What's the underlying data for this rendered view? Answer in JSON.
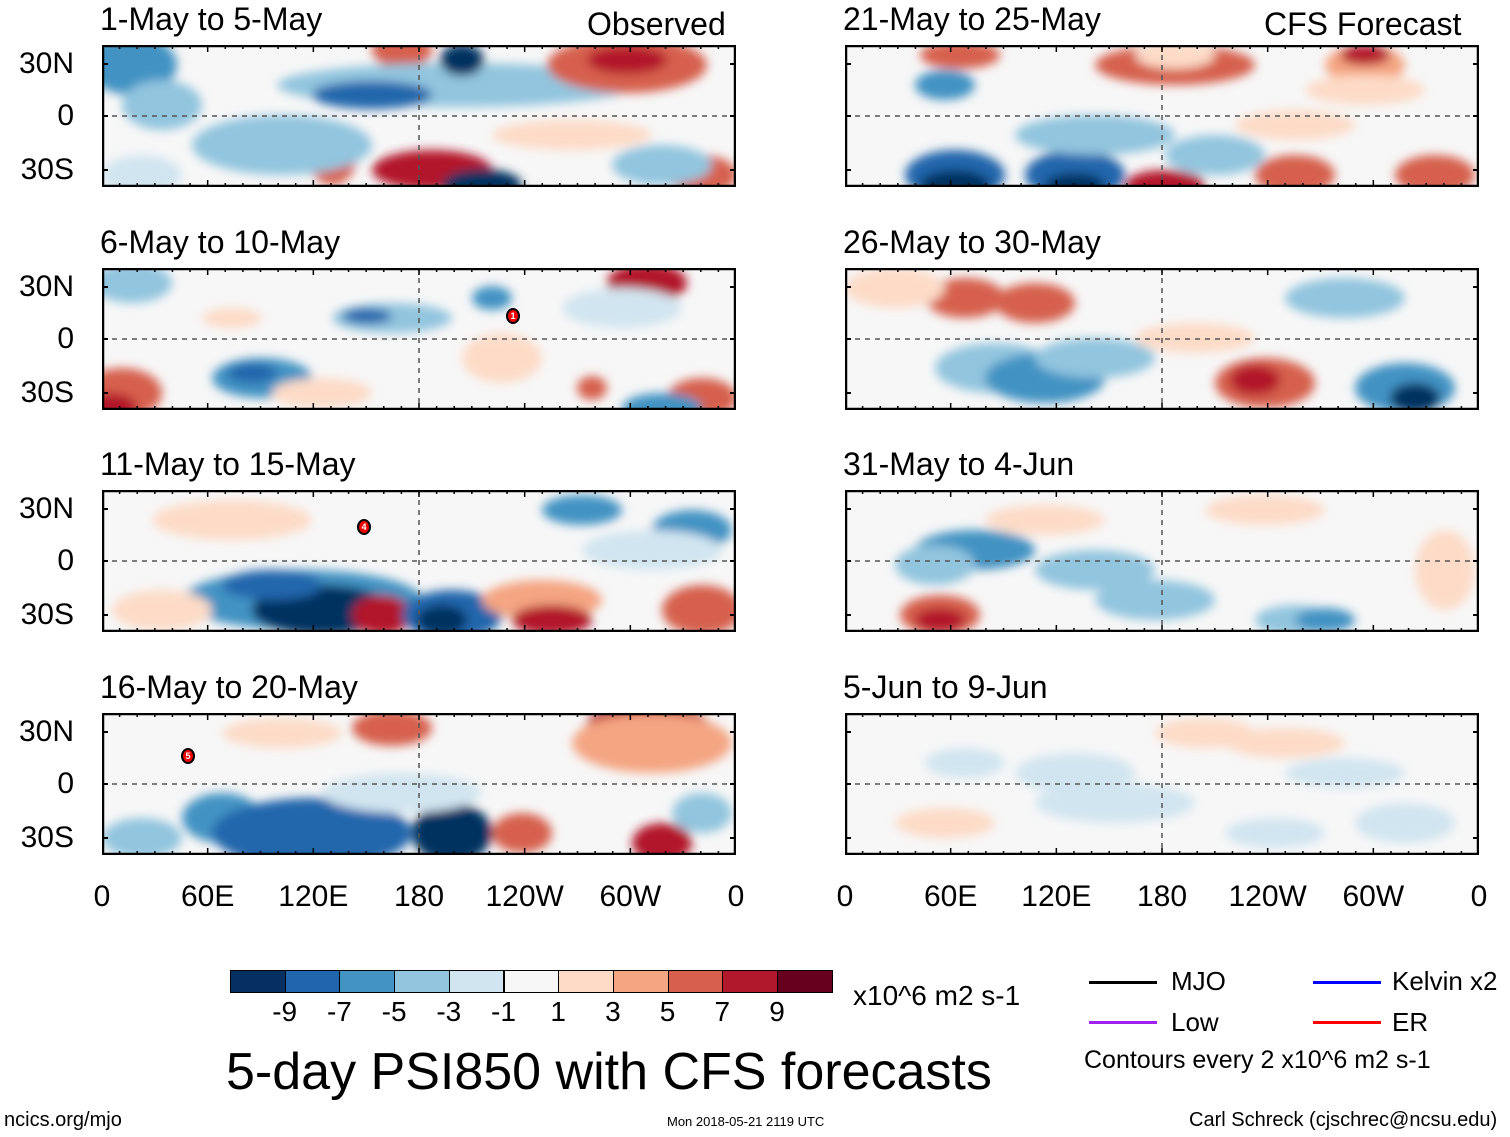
{
  "columns": {
    "left_label": "Observed",
    "right_label": "CFS Forecast"
  },
  "panels": [
    {
      "title": "1-May to 5-May",
      "column": "observed"
    },
    {
      "title": "6-May to 10-May",
      "column": "observed",
      "marker": "1"
    },
    {
      "title": "11-May to 15-May",
      "column": "observed",
      "marker": "4"
    },
    {
      "title": "16-May to 20-May",
      "column": "observed",
      "marker": "5"
    },
    {
      "title": "21-May to 25-May",
      "column": "forecast"
    },
    {
      "title": "26-May to 30-May",
      "column": "forecast"
    },
    {
      "title": "31-May to 4-Jun",
      "column": "forecast"
    },
    {
      "title": "5-Jun to 9-Jun",
      "column": "forecast"
    }
  ],
  "lat_labels": [
    "30N",
    "0",
    "30S"
  ],
  "lon_labels": [
    "0",
    "60E",
    "120E",
    "180",
    "120W",
    "60W",
    "0"
  ],
  "colorbar": {
    "colors": [
      "#053061",
      "#2166ac",
      "#4393c3",
      "#92c5de",
      "#d1e5f0",
      "#f7f7f7",
      "#fddbc7",
      "#f4a582",
      "#d6604d",
      "#b2182b",
      "#67001f"
    ],
    "labels": [
      "-9",
      "-7",
      "-5",
      "-3",
      "-1",
      "1",
      "3",
      "5",
      "7",
      "9"
    ],
    "units": "x10^6 m2 s-1"
  },
  "legend": [
    {
      "label": "MJO",
      "color": "#000000"
    },
    {
      "label": "Kelvin x2",
      "color": "#0000ff"
    },
    {
      "label": "Low",
      "color": "#a020f0"
    },
    {
      "label": "ER",
      "color": "#ff0000"
    }
  ],
  "contour_note": "Contours every 2 x10^6 m2 s-1",
  "main_title": "5-day PSI850 with CFS forecasts",
  "footer": {
    "left": "ncics.org/mjo",
    "center": "Mon 2018-05-21 2119 UTC",
    "right": "Carl Schreck (cjschrec@ncsu.edu)"
  }
}
